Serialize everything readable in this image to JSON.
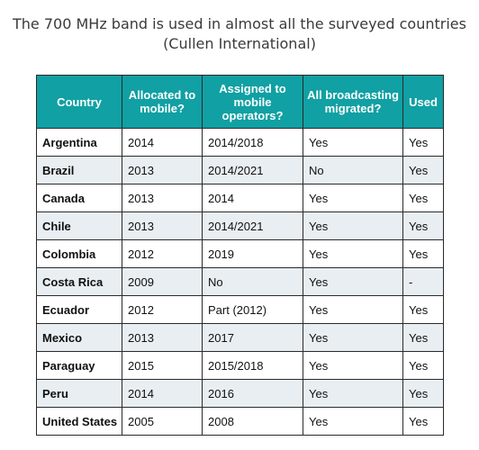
{
  "title_line1": "The 700 MHz band is used in almost all the surveyed countries",
  "title_line2": "(Cullen International)",
  "chart_data": {
    "type": "table",
    "columns": [
      "Country",
      "Allocated to mobile?",
      "Assigned to mobile operators?",
      "All broadcasting migrated?",
      "Used"
    ],
    "rows": [
      [
        "Argentina",
        "2014",
        "2014/2018",
        "Yes",
        "Yes"
      ],
      [
        "Brazil",
        "2013",
        "2014/2021",
        "No",
        "Yes"
      ],
      [
        "Canada",
        "2013",
        "2014",
        "Yes",
        "Yes"
      ],
      [
        "Chile",
        "2013",
        "2014/2021",
        "Yes",
        "Yes"
      ],
      [
        "Colombia",
        "2012",
        "2019",
        "Yes",
        "Yes"
      ],
      [
        "Costa Rica",
        "2009",
        "No",
        "Yes",
        "-"
      ],
      [
        "Ecuador",
        "2012",
        "Part (2012)",
        "Yes",
        "Yes"
      ],
      [
        "Mexico",
        "2013",
        "2017",
        "Yes",
        "Yes"
      ],
      [
        "Paraguay",
        "2015",
        "2015/2018",
        "Yes",
        "Yes"
      ],
      [
        "Peru",
        "2014",
        "2016",
        "Yes",
        "Yes"
      ],
      [
        "United States",
        "2005",
        "2008",
        "Yes",
        "Yes"
      ]
    ]
  },
  "colors": {
    "header_bg": "#11a0a3",
    "row_alt_bg": "#e8eef2",
    "border": "#2a2a2a"
  }
}
